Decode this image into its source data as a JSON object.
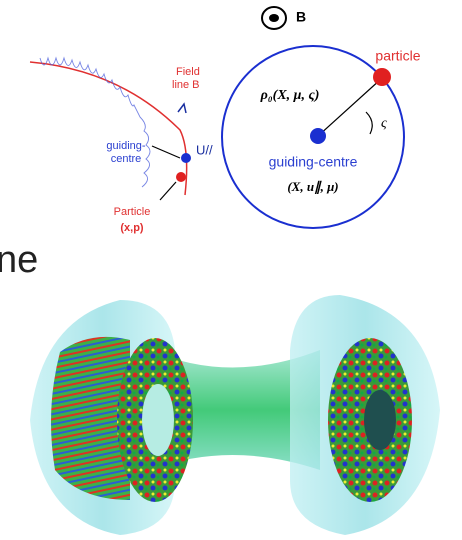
{
  "left_diagram": {
    "field_label": [
      "Field",
      "line B"
    ],
    "gc_label": [
      "guiding-",
      "centre"
    ],
    "parallel_velocity": "U//",
    "particle_label": "Particle",
    "particle_coords": "(x,p)"
  },
  "right_diagram": {
    "field": "B",
    "particle": "particle",
    "gyro_radius": "ρ₀(X, μ, ς)",
    "gyro_angle": "ς",
    "gc": "guiding-centre",
    "gc_coords": "(X, u∥, μ)"
  },
  "fragment_text": "ne"
}
